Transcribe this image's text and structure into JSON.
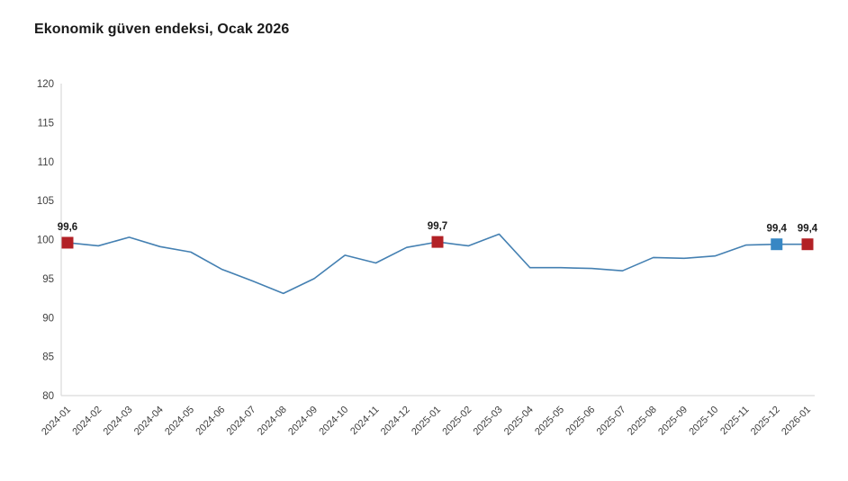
{
  "title": "Ekonomik güven endeksi, Ocak 2026",
  "chart_data": {
    "type": "line",
    "title": "Ekonomik güven endeksi, Ocak 2026",
    "xlabel": "",
    "ylabel": "",
    "ylim": [
      80,
      120
    ],
    "ytick_step": 5,
    "grid": false,
    "legend": "none",
    "categories": [
      "2024-01",
      "2024-02",
      "2024-03",
      "2024-04",
      "2024-05",
      "2024-06",
      "2024-07",
      "2024-08",
      "2024-09",
      "2024-10",
      "2024-11",
      "2024-12",
      "2025-01",
      "2025-02",
      "2025-03",
      "2025-04",
      "2025-05",
      "2025-06",
      "2025-07",
      "2025-08",
      "2025-09",
      "2025-10",
      "2025-11",
      "2025-12",
      "2026-01"
    ],
    "values": [
      99.6,
      99.2,
      100.3,
      99.1,
      98.4,
      96.2,
      94.7,
      93.1,
      95.0,
      98.0,
      97.0,
      99.0,
      99.7,
      99.2,
      100.7,
      96.4,
      96.4,
      96.3,
      96.0,
      97.7,
      97.6,
      97.9,
      99.3,
      99.4,
      99.4
    ],
    "labeled_points": [
      {
        "index": 0,
        "label": "99,6",
        "marker": "red"
      },
      {
        "index": 12,
        "label": "99,7",
        "marker": "red"
      },
      {
        "index": 23,
        "label": "99,4",
        "marker": "blue"
      },
      {
        "index": 24,
        "label": "99,4",
        "marker": "red"
      }
    ],
    "colors": {
      "line": "#4480b2",
      "marker_red": "#b22126",
      "marker_blue": "#3787c4",
      "axis": "#d9d9d9",
      "tick_text": "#404040",
      "data_label_text": "#1a1a1a"
    }
  }
}
